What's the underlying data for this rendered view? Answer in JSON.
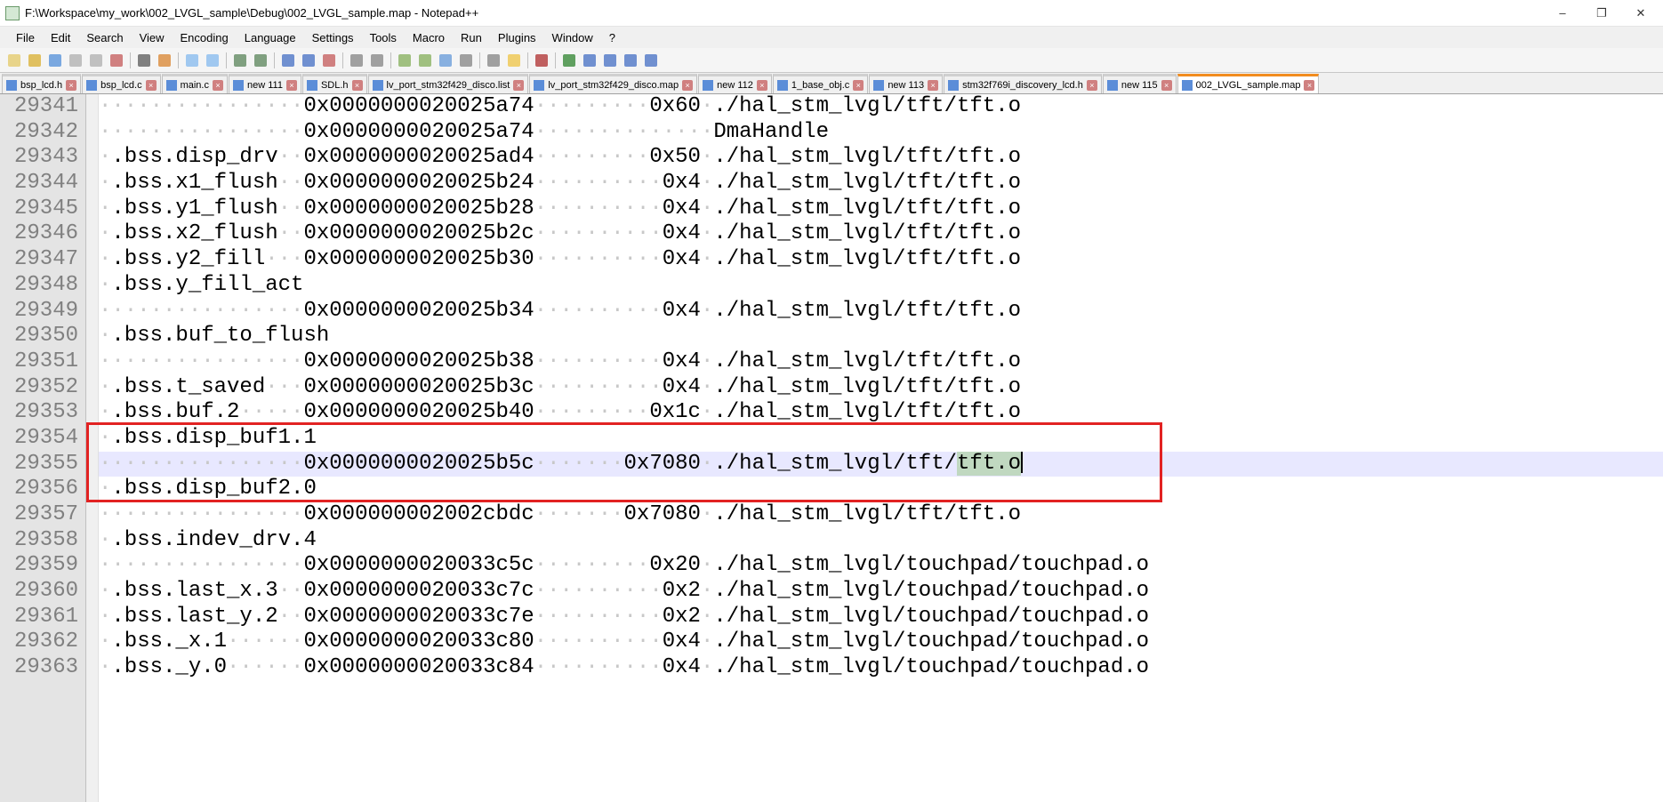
{
  "window": {
    "title": "F:\\Workspace\\my_work\\002_LVGL_sample\\Debug\\002_LVGL_sample.map - Notepad++",
    "minimize": "–",
    "maximize": "❐",
    "close": "✕"
  },
  "menu": [
    "File",
    "Edit",
    "Search",
    "View",
    "Encoding",
    "Language",
    "Settings",
    "Tools",
    "Macro",
    "Run",
    "Plugins",
    "Window",
    "?"
  ],
  "tabs": [
    {
      "label": "bsp_lcd.h",
      "active": false
    },
    {
      "label": "bsp_lcd.c",
      "active": false
    },
    {
      "label": "main.c",
      "active": false
    },
    {
      "label": "new 111",
      "active": false
    },
    {
      "label": "SDL.h",
      "active": false
    },
    {
      "label": "lv_port_stm32f429_disco.list",
      "active": false
    },
    {
      "label": "lv_port_stm32f429_disco.map",
      "active": false
    },
    {
      "label": "new 112",
      "active": false
    },
    {
      "label": "1_base_obj.c",
      "active": false
    },
    {
      "label": "new 113",
      "active": false
    },
    {
      "label": "stm32f769i_discovery_lcd.h",
      "active": false
    },
    {
      "label": "new 115",
      "active": false
    },
    {
      "label": "002_LVGL_sample.map",
      "active": true
    }
  ],
  "first_line_number": 29341,
  "lines": [
    {
      "section": "",
      "addr": "0x0000000020025a74",
      "size": "0x60",
      "file": "./hal_stm_lvgl/tft/tft.o",
      "indent": 1
    },
    {
      "section": "",
      "addr": "0x0000000020025a74",
      "size": "",
      "file": "DmaHandle",
      "indent": 1,
      "namecol": true
    },
    {
      "section": ".bss.disp_drv",
      "addr": "0x0000000020025ad4",
      "size": "0x50",
      "file": "./hal_stm_lvgl/tft/tft.o",
      "indent": 1
    },
    {
      "section": ".bss.x1_flush",
      "addr": "0x0000000020025b24",
      "size": "0x4",
      "file": "./hal_stm_lvgl/tft/tft.o",
      "indent": 1
    },
    {
      "section": ".bss.y1_flush",
      "addr": "0x0000000020025b28",
      "size": "0x4",
      "file": "./hal_stm_lvgl/tft/tft.o",
      "indent": 1
    },
    {
      "section": ".bss.x2_flush",
      "addr": "0x0000000020025b2c",
      "size": "0x4",
      "file": "./hal_stm_lvgl/tft/tft.o",
      "indent": 1
    },
    {
      "section": ".bss.y2_fill",
      "addr": "0x0000000020025b30",
      "size": "0x4",
      "file": "./hal_stm_lvgl/tft/tft.o",
      "indent": 1
    },
    {
      "section": ".bss.y_fill_act",
      "addr": "",
      "size": "",
      "file": "",
      "indent": 1
    },
    {
      "section": "",
      "addr": "0x0000000020025b34",
      "size": "0x4",
      "file": "./hal_stm_lvgl/tft/tft.o",
      "indent": 1
    },
    {
      "section": ".bss.buf_to_flush",
      "addr": "",
      "size": "",
      "file": "",
      "indent": 1
    },
    {
      "section": "",
      "addr": "0x0000000020025b38",
      "size": "0x4",
      "file": "./hal_stm_lvgl/tft/tft.o",
      "indent": 1
    },
    {
      "section": ".bss.t_saved",
      "addr": "0x0000000020025b3c",
      "size": "0x4",
      "file": "./hal_stm_lvgl/tft/tft.o",
      "indent": 1
    },
    {
      "section": ".bss.buf.2",
      "addr": "0x0000000020025b40",
      "size": "0x1c",
      "file": "./hal_stm_lvgl/tft/tft.o",
      "indent": 1
    },
    {
      "section": ".bss.disp_buf1.1",
      "addr": "",
      "size": "",
      "file": "",
      "indent": 1,
      "redbox_top": true
    },
    {
      "section": "",
      "addr": "0x0000000020025b5c",
      "size": "0x7080",
      "file": "./hal_stm_lvgl/tft/tft.o",
      "indent": 1,
      "current": true,
      "sel": "tft.o"
    },
    {
      "section": ".bss.disp_buf2.0",
      "addr": "",
      "size": "",
      "file": "",
      "indent": 1,
      "redbox_bottom": true
    },
    {
      "section": "",
      "addr": "0x000000002002cbdc",
      "size": "0x7080",
      "file": "./hal_stm_lvgl/tft/tft.o",
      "indent": 1
    },
    {
      "section": ".bss.indev_drv.4",
      "addr": "",
      "size": "",
      "file": "",
      "indent": 1
    },
    {
      "section": "",
      "addr": "0x0000000020033c5c",
      "size": "0x20",
      "file": "./hal_stm_lvgl/touchpad/touchpad.o",
      "indent": 1
    },
    {
      "section": ".bss.last_x.3",
      "addr": "0x0000000020033c7c",
      "size": "0x2",
      "file": "./hal_stm_lvgl/touchpad/touchpad.o",
      "indent": 1
    },
    {
      "section": ".bss.last_y.2",
      "addr": "0x0000000020033c7e",
      "size": "0x2",
      "file": "./hal_stm_lvgl/touchpad/touchpad.o",
      "indent": 1
    },
    {
      "section": ".bss._x.1",
      "addr": "0x0000000020033c80",
      "size": "0x4",
      "file": "./hal_stm_lvgl/touchpad/touchpad.o",
      "indent": 1
    },
    {
      "section": ".bss._y.0",
      "addr": "0x0000000020033c84",
      "size": "0x4",
      "file": "./hal_stm_lvgl/touchpad/touchpad.o",
      "indent": 1
    }
  ],
  "toolbar_icons": [
    "📄",
    "📂",
    "💾",
    "🗎",
    "🗐",
    "✖",
    "🖨",
    "✂",
    "📋",
    "📋",
    "↶",
    "↷",
    "🔍",
    "🔎",
    "🔍",
    "◧",
    "◨",
    "◩",
    "◪",
    "≣",
    "◤",
    "◥",
    "◣",
    "👁",
    "🔴",
    "⏵",
    "⏵",
    "⏭",
    "⏮"
  ]
}
